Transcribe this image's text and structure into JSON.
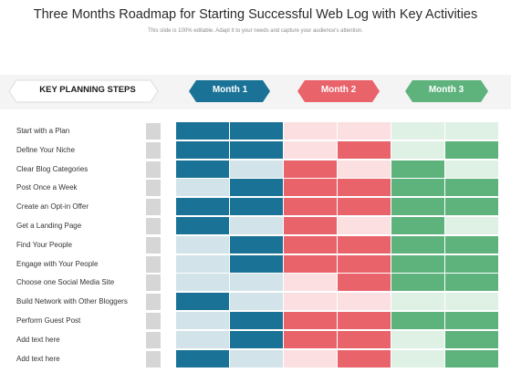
{
  "title": "Three Months Roadmap for Starting Successful Web Log with Key Activities",
  "subtitle": "This slide is 100% editable. Adapt it to your needs and capture your audience's attention.",
  "key_header": "KEY PLANNING STEPS",
  "months": [
    {
      "label": "Month 1",
      "dark": "#1a7397",
      "light": "#d2e4ea",
      "tab_fill": "#1a7397"
    },
    {
      "label": "Month 2",
      "dark": "#e9636b",
      "light": "#fbdfe1",
      "tab_fill": "#e9636b"
    },
    {
      "label": "Month 3",
      "dark": "#5eb37d",
      "light": "#dff0e5",
      "tab_fill": "#5eb37d"
    }
  ],
  "rows": [
    {
      "label": "Start with a Plan",
      "cells": [
        1,
        1,
        0,
        0,
        0,
        0
      ]
    },
    {
      "label": "Define Your Niche",
      "cells": [
        1,
        1,
        0,
        1,
        0,
        1
      ]
    },
    {
      "label": "Clear Blog Categories",
      "cells": [
        1,
        0,
        1,
        0,
        1,
        0
      ]
    },
    {
      "label": "Post Once a Week",
      "cells": [
        0,
        1,
        1,
        1,
        1,
        1
      ]
    },
    {
      "label": "Create an Opt-in Offer",
      "cells": [
        1,
        1,
        1,
        1,
        1,
        1
      ]
    },
    {
      "label": "Get a Landing Page",
      "cells": [
        1,
        0,
        1,
        0,
        1,
        0
      ]
    },
    {
      "label": "Find Your People",
      "cells": [
        0,
        1,
        1,
        1,
        1,
        1
      ]
    },
    {
      "label": "Engage with Your People",
      "cells": [
        0,
        1,
        1,
        1,
        1,
        1
      ]
    },
    {
      "label": "Choose one Social Media Site",
      "cells": [
        0,
        0,
        0,
        1,
        1,
        1
      ]
    },
    {
      "label": "Build Network with Other Bloggers",
      "cells": [
        1,
        0,
        0,
        0,
        0,
        0
      ]
    },
    {
      "label": "Perform Guest Post",
      "cells": [
        0,
        1,
        1,
        1,
        1,
        1
      ]
    },
    {
      "label": "Add text here",
      "cells": [
        0,
        1,
        1,
        1,
        0,
        1
      ]
    },
    {
      "label": "Add text here",
      "cells": [
        1,
        0,
        0,
        1,
        0,
        1
      ]
    }
  ]
}
